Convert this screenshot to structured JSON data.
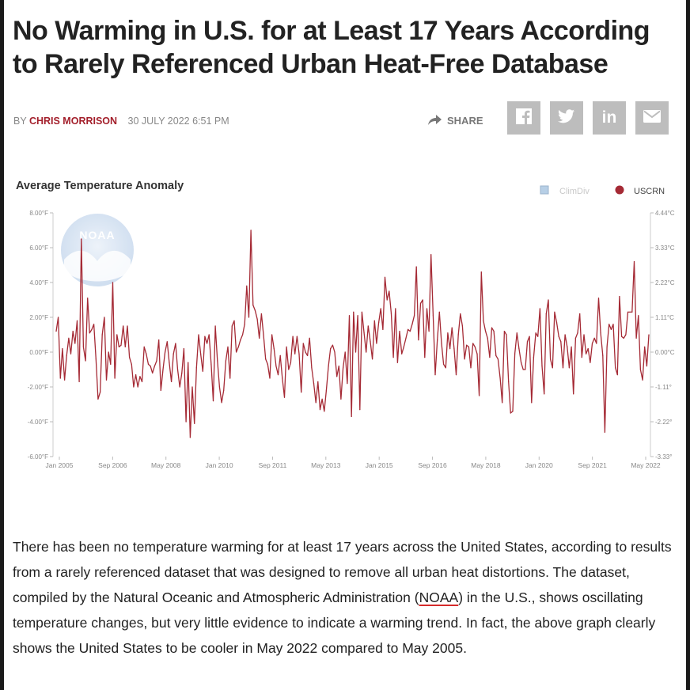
{
  "article": {
    "headline": "No Warming in U.S. for at Least 17 Years According to Rarely Referenced Urban Heat-Free Database",
    "byline_prefix": "BY",
    "author": "CHRIS MORRISON",
    "date": "30 JULY 2022 6:51 PM",
    "share_label": "SHARE",
    "social": [
      "facebook",
      "twitter",
      "linkedin",
      "email"
    ],
    "body": {
      "p1": "There has been no temperature warming for at least 17 years across the United States, according to results from a rarely referenced dataset that was designed to remove all urban heat distortions. The dataset, compiled by the Natural Oceanic and Atmospheric Administration (",
      "noaa": "NOAA",
      "p2": ") in the U.S., shows oscillating temperature changes, but very little evidence to indicate a warming trend. In fact, the above graph clearly shows the United States to be cooler in May 2022 compared to May 2005."
    }
  },
  "colors": {
    "accent": "#a31f2b",
    "series_line": "#a52a35",
    "climdiv_legend": "#b7cfe6",
    "social_bg": "#bdbdbd"
  },
  "chart_data": {
    "type": "line",
    "title": "Average Temperature Anomaly",
    "watermark": "NOAA",
    "legend": [
      {
        "name": "ClimDiv",
        "active": false
      },
      {
        "name": "USCRN",
        "active": true
      }
    ],
    "legend_position": "top-right",
    "y_left": {
      "min": -6,
      "max": 8,
      "ticks": [
        "8.00°F",
        "6.00°F",
        "4.00°F",
        "2.00°F",
        "0.00°F",
        "-2.00°F",
        "-4.00°F",
        "-6.00°F"
      ]
    },
    "y_right": {
      "ticks": [
        "4.44°C",
        "3.33°C",
        "2.22°C",
        "1.11°C",
        "0.00°C",
        "-1.11°",
        "-2.22°",
        "-3.33°"
      ]
    },
    "x_ticks": [
      "Jan 2005",
      "Sep 2006",
      "May 2008",
      "Jan 2010",
      "Sep 2011",
      "May 2013",
      "Jan 2015",
      "Sep 2016",
      "May 2018",
      "Jan 2020",
      "Sep 2021",
      "May 2022"
    ],
    "series": [
      {
        "name": "USCRN",
        "start": "Jan 2005",
        "end": "May 2022",
        "values": [
          1.2,
          2.0,
          -1.5,
          0.2,
          -1.6,
          -0.2,
          0.8,
          -0.1,
          1.2,
          0.5,
          1.8,
          -1.7,
          6.5,
          0.3,
          -0.5,
          3.1,
          1.1,
          1.3,
          1.6,
          -0.4,
          -2.7,
          -2.3,
          1.0,
          2.0,
          -1.6,
          0.0,
          -0.7,
          4.0,
          -1.5,
          1.0,
          0.3,
          0.4,
          1.5,
          0.3,
          1.5,
          -0.3,
          -0.7,
          -2.0,
          -1.3,
          -2.0,
          -1.4,
          -1.7,
          0.3,
          -0.1,
          -0.7,
          -0.8,
          -1.2,
          -0.8,
          -0.5,
          0.7,
          -2.2,
          -1.0,
          0.0,
          0.6,
          -0.6,
          -1.7,
          -0.1,
          0.5,
          -1.0,
          -2.0,
          -1.2,
          0.2,
          -4.0,
          -0.6,
          -4.9,
          -2.0,
          -4.1,
          -0.9,
          1.0,
          -0.1,
          -1.1,
          0.9,
          0.5,
          1.0,
          -0.7,
          -2.8,
          1.5,
          -0.5,
          -2.0,
          -2.9,
          -2.2,
          -0.5,
          0.3,
          -1.5,
          1.5,
          1.8,
          0.0,
          0.3,
          0.7,
          1.0,
          1.6,
          3.8,
          2.0,
          7.0,
          2.7,
          2.4,
          1.9,
          0.8,
          2.2,
          1.0,
          -0.4,
          -0.7,
          -1.5,
          1.0,
          0.2,
          -0.8,
          -1.3,
          -0.2,
          -1.5,
          -2.6,
          0.3,
          -1.0,
          -0.6,
          0.9,
          -0.1,
          0.9,
          -0.1,
          -2.3,
          0.5,
          0.0,
          -0.2,
          0.8,
          -0.9,
          -1.8,
          -2.9,
          -1.7,
          -3.3,
          -2.7,
          -3.4,
          -2.2,
          -0.8,
          0.2,
          0.4,
          0.0,
          -1.4,
          -0.8,
          -2.7,
          -0.9,
          0.0,
          -1.8,
          2.1,
          -3.7,
          2.3,
          0.0,
          2.1,
          -3.3,
          2.3,
          1.1,
          0.0,
          1.5,
          0.6,
          -0.4,
          1.8,
          0.5,
          1.7,
          2.5,
          1.3,
          4.3,
          3.0,
          3.5,
          2.2,
          -0.3,
          2.5,
          -0.6,
          1.2,
          -0.1,
          0.3,
          0.8,
          1.3,
          1.2,
          1.6,
          2.1,
          4.9,
          0.7,
          2.8,
          3.0,
          -0.3,
          2.5,
          1.2,
          5.6,
          2.1,
          -1.3,
          0.7,
          2.3,
          0.5,
          -0.7,
          -0.9,
          1.1,
          0.2,
          1.4,
          0.2,
          -1.3,
          1.0,
          2.2,
          1.5,
          -0.4,
          0.4,
          0.3,
          -0.9,
          0.5,
          0.3,
          -0.1,
          -2.5,
          4.6,
          1.8,
          1.2,
          0.8,
          -0.3,
          1.4,
          1.2,
          -0.2,
          -0.4,
          -1.5,
          -2.9,
          1.2,
          1.0,
          -1.7,
          -3.5,
          -3.4,
          -0.1,
          1.1,
          0.2,
          -0.6,
          -1.0,
          -1.0,
          0.6,
          0.9,
          -2.9,
          -0.3,
          1.1,
          0.9,
          2.5,
          -0.8,
          -2.4,
          2.2,
          3.0,
          -0.4,
          -0.9,
          2.3,
          1.7,
          0.9,
          0.6,
          -0.9,
          1.0,
          0.3,
          -0.9,
          0.3,
          -2.4,
          0.8,
          1.1,
          2.2,
          -0.3,
          1.0,
          -0.1,
          0.2,
          -0.6,
          0.5,
          0.8,
          0.5,
          3.1,
          1.1,
          -0.2,
          -4.6,
          0.3,
          1.6,
          1.3,
          1.6,
          -0.9,
          -1.3,
          3.2,
          0.9,
          0.8,
          1.0,
          2.3,
          2.3,
          2.3,
          5.2,
          0.8,
          2.1,
          -1.0,
          -1.6,
          0.3,
          -0.8,
          1.0
        ]
      }
    ]
  }
}
